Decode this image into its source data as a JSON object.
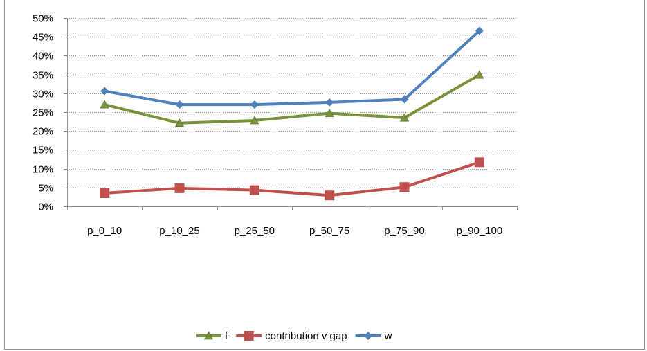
{
  "chart_data": {
    "type": "line",
    "categories": [
      "p_0_10",
      "p_10_25",
      "p_25_50",
      "p_50_75",
      "p_75_90",
      "p_90_100"
    ],
    "ylim": [
      0,
      0.5
    ],
    "yticks": [
      "0%",
      "5%",
      "10%",
      "15%",
      "20%",
      "25%",
      "30%",
      "35%",
      "40%",
      "45%",
      "50%"
    ],
    "grid": true,
    "legend_position": "bottom",
    "series": [
      {
        "name": "f",
        "values": [
          0.27,
          0.221,
          0.228,
          0.247,
          0.235,
          0.349
        ],
        "color": "#77933c",
        "marker": "triangle"
      },
      {
        "name": "contribution v gap",
        "values": [
          0.035,
          0.048,
          0.043,
          0.029,
          0.051,
          0.117
        ],
        "color": "#c0504d",
        "marker": "square"
      },
      {
        "name": "w",
        "values": [
          0.306,
          0.27,
          0.27,
          0.276,
          0.284,
          0.466
        ],
        "color": "#4f81bd",
        "marker": "diamond"
      }
    ]
  }
}
